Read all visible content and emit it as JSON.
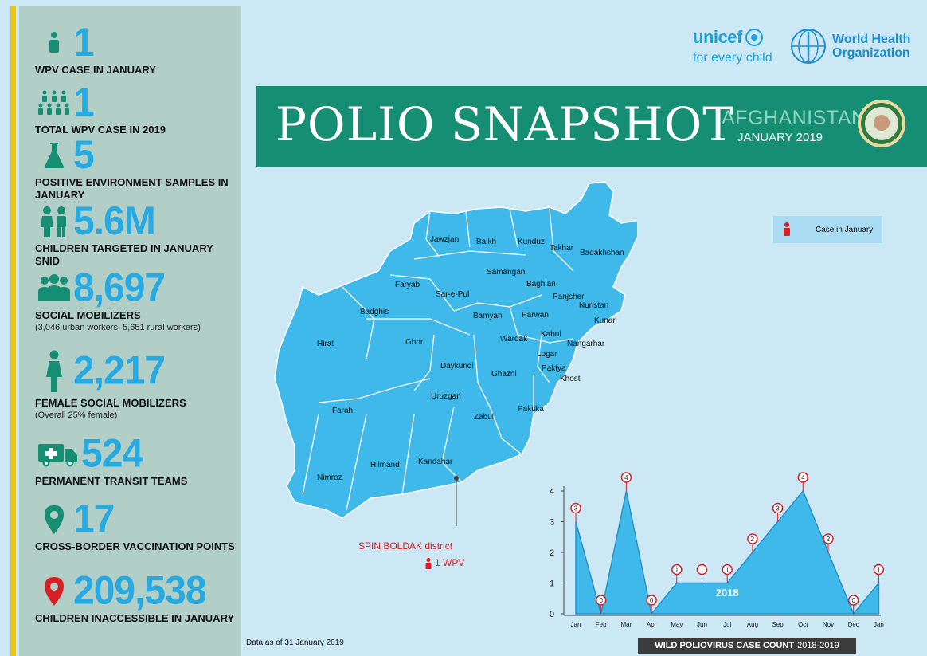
{
  "stats": {
    "wpv_jan": {
      "value": "1",
      "label": "WPV CASE IN JANUARY"
    },
    "wpv_total": {
      "value": "1",
      "label": "TOTAL WPV CASE IN 2019"
    },
    "env": {
      "value": "5",
      "label": "POSITIVE ENVIRONMENT SAMPLES IN JANUARY"
    },
    "children": {
      "value": "5.6M",
      "label": "CHILDREN TARGETED IN JANUARY SNID"
    },
    "mobilizers": {
      "value": "8,697",
      "label": "SOCIAL MOBILIZERS",
      "sub": "(3,046 urban workers, 5,651 rural workers)"
    },
    "female": {
      "value": "2,217",
      "label": "FEMALE SOCIAL MOBILIZERS",
      "sub": "(Overall 25% female)"
    },
    "transit": {
      "value": "524",
      "label": "PERMANENT TRANSIT TEAMS"
    },
    "border": {
      "value": "17",
      "label": "CROSS-BORDER VACCINATION POINTS"
    },
    "inaccessible": {
      "value": "209,538",
      "label": "CHILDREN INACCESSIBLE IN JANUARY"
    }
  },
  "logos": {
    "unicef": "unicef",
    "unicef_tag": "for every child",
    "who_line1": "World Health",
    "who_line2": "Organization"
  },
  "banner": {
    "title": "POLIO SNAPSHOT",
    "country": "AFGHANISTAN",
    "date": "JANUARY 2019"
  },
  "legend": {
    "label": "Case in January"
  },
  "map": {
    "provinces": [
      "Jawzjan",
      "Balkh",
      "Kunduz",
      "Takhar",
      "Badakhshan",
      "Samangan",
      "Faryab",
      "Baghlan",
      "Sar-e-Pul",
      "Panjsher",
      "Nuristan",
      "Badghis",
      "Bamyan",
      "Parwan",
      "Kunar",
      "Kabul",
      "Hirat",
      "Ghor",
      "Wardak",
      "Nangarhar",
      "Logar",
      "Daykundi",
      "Ghazni",
      "Paktya",
      "Khost",
      "Uruzgan",
      "Farah",
      "Paktika",
      "Zabul",
      "Kandahar",
      "Hilmand",
      "Nimroz"
    ],
    "district": "SPIN BOLDAK district",
    "district_case": "1 WPV"
  },
  "note": "Data as of 31 January 2019",
  "colors": {
    "map_fill": "#3fb8ea",
    "banner": "#158e73",
    "accent_red": "#d62027",
    "stat_blue": "#27a9e1"
  },
  "chart_data": {
    "type": "area",
    "title": "WILD POLIOVIRUS CASE COUNT",
    "title_years": "2018-2019",
    "series_label": "2018",
    "categories": [
      "Jan",
      "Feb",
      "Mar",
      "Apr",
      "May",
      "Jun",
      "Jul",
      "Aug",
      "Sep",
      "Oct",
      "Nov",
      "Dec",
      "Jan"
    ],
    "values": [
      3,
      0,
      4,
      0,
      1,
      1,
      1,
      2,
      3,
      4,
      2,
      0,
      1
    ],
    "yticks": [
      0,
      1,
      2,
      3,
      4
    ],
    "ylim": [
      0,
      4
    ]
  }
}
